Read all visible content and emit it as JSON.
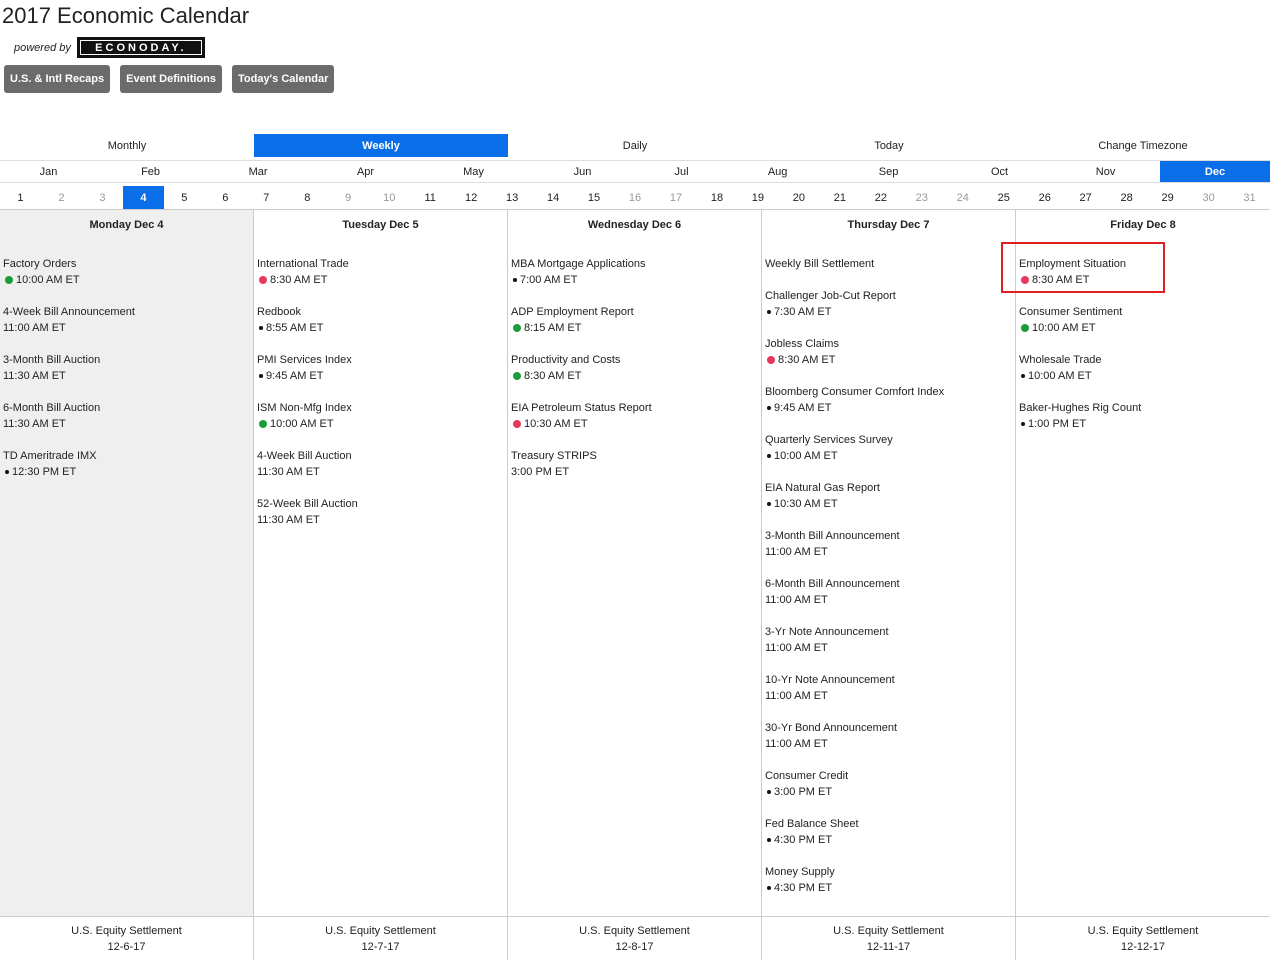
{
  "header": {
    "title": "2017 Economic Calendar",
    "powered_by": "powered by",
    "logo_text": "ECONODAY."
  },
  "top_buttons": [
    "U.S. & Intl Recaps",
    "Event Definitions",
    "Today's Calendar"
  ],
  "view_tabs": [
    {
      "label": "Monthly",
      "active": false
    },
    {
      "label": "Weekly",
      "active": true
    },
    {
      "label": "Daily",
      "active": false
    },
    {
      "label": "Today",
      "active": false
    },
    {
      "label": "Change Timezone",
      "active": false
    }
  ],
  "months": [
    "Jan",
    "Feb",
    "Mar",
    "Apr",
    "May",
    "Jun",
    "Jul",
    "Aug",
    "Sep",
    "Oct",
    "Nov",
    "Dec"
  ],
  "active_month": "Dec",
  "days": [
    {
      "n": "1",
      "m": false
    },
    {
      "n": "2",
      "m": true
    },
    {
      "n": "3",
      "m": true
    },
    {
      "n": "4",
      "m": false,
      "a": true
    },
    {
      "n": "5",
      "m": false
    },
    {
      "n": "6",
      "m": false
    },
    {
      "n": "7",
      "m": false
    },
    {
      "n": "8",
      "m": false
    },
    {
      "n": "9",
      "m": true
    },
    {
      "n": "10",
      "m": true
    },
    {
      "n": "11",
      "m": false
    },
    {
      "n": "12",
      "m": false
    },
    {
      "n": "13",
      "m": false
    },
    {
      "n": "14",
      "m": false
    },
    {
      "n": "15",
      "m": false
    },
    {
      "n": "16",
      "m": true
    },
    {
      "n": "17",
      "m": true
    },
    {
      "n": "18",
      "m": false
    },
    {
      "n": "19",
      "m": false
    },
    {
      "n": "20",
      "m": false
    },
    {
      "n": "21",
      "m": false
    },
    {
      "n": "22",
      "m": false
    },
    {
      "n": "23",
      "m": true
    },
    {
      "n": "24",
      "m": true
    },
    {
      "n": "25",
      "m": false
    },
    {
      "n": "26",
      "m": false
    },
    {
      "n": "27",
      "m": false
    },
    {
      "n": "28",
      "m": false
    },
    {
      "n": "29",
      "m": false
    },
    {
      "n": "30",
      "m": true
    },
    {
      "n": "31",
      "m": true
    }
  ],
  "columns": [
    {
      "heading": "Monday Dec 4",
      "today": true,
      "events": [
        {
          "name": "Factory Orders",
          "time": "10:00 AM ET",
          "dot": "green"
        },
        {
          "name": "4-Week Bill Announcement",
          "time": "11:00 AM ET",
          "dot": ""
        },
        {
          "name": "3-Month Bill Auction",
          "time": "11:30 AM ET",
          "dot": ""
        },
        {
          "name": "6-Month Bill Auction",
          "time": "11:30 AM ET",
          "dot": ""
        },
        {
          "name": "TD Ameritrade IMX",
          "time": "12:30 PM ET",
          "dot": "black"
        }
      ],
      "footer": [
        "U.S. Equity Settlement",
        "12-6-17"
      ]
    },
    {
      "heading": "Tuesday Dec 5",
      "today": false,
      "events": [
        {
          "name": "International Trade",
          "time": "8:30 AM ET",
          "dot": "red"
        },
        {
          "name": "Redbook",
          "time": "8:55 AM ET",
          "dot": "black"
        },
        {
          "name": "PMI Services Index",
          "time": "9:45 AM ET",
          "dot": "black"
        },
        {
          "name": "ISM Non-Mfg Index",
          "time": "10:00 AM ET",
          "dot": "green"
        },
        {
          "name": "4-Week Bill Auction",
          "time": "11:30 AM ET",
          "dot": ""
        },
        {
          "name": "52-Week Bill Auction",
          "time": "11:30 AM ET",
          "dot": ""
        }
      ],
      "footer": [
        "U.S. Equity Settlement",
        "12-7-17"
      ]
    },
    {
      "heading": "Wednesday Dec 6",
      "today": false,
      "events": [
        {
          "name": "MBA Mortgage Applications",
          "time": "7:00 AM ET",
          "dot": "black"
        },
        {
          "name": "ADP Employment Report",
          "time": "8:15 AM ET",
          "dot": "green"
        },
        {
          "name": "Productivity and Costs",
          "time": "8:30 AM ET",
          "dot": "green"
        },
        {
          "name": "EIA Petroleum Status Report",
          "time": "10:30 AM ET",
          "dot": "red"
        },
        {
          "name": "Treasury STRIPS",
          "time": "3:00 PM ET",
          "dot": ""
        }
      ],
      "footer": [
        "U.S. Equity Settlement",
        "12-8-17"
      ]
    },
    {
      "heading": "Thursday Dec 7",
      "today": false,
      "events": [
        {
          "name": "Weekly Bill Settlement",
          "time": "",
          "dot": ""
        },
        {
          "name": "Challenger Job-Cut Report",
          "time": "7:30 AM ET",
          "dot": "black"
        },
        {
          "name": "Jobless Claims",
          "time": "8:30 AM ET",
          "dot": "red"
        },
        {
          "name": "Bloomberg Consumer Comfort Index",
          "time": "9:45 AM ET",
          "dot": "black"
        },
        {
          "name": "Quarterly Services Survey",
          "time": "10:00 AM ET",
          "dot": "black"
        },
        {
          "name": "EIA Natural Gas Report",
          "time": "10:30 AM ET",
          "dot": "black"
        },
        {
          "name": "3-Month Bill Announcement",
          "time": "11:00 AM ET",
          "dot": ""
        },
        {
          "name": "6-Month Bill Announcement",
          "time": "11:00 AM ET",
          "dot": ""
        },
        {
          "name": "3-Yr Note Announcement",
          "time": "11:00 AM ET",
          "dot": ""
        },
        {
          "name": "10-Yr Note Announcement",
          "time": "11:00 AM ET",
          "dot": ""
        },
        {
          "name": "30-Yr Bond Announcement",
          "time": "11:00 AM ET",
          "dot": ""
        },
        {
          "name": "Consumer Credit",
          "time": "3:00 PM ET",
          "dot": "black"
        },
        {
          "name": "Fed Balance Sheet",
          "time": "4:30 PM ET",
          "dot": "black"
        },
        {
          "name": "Money Supply",
          "time": "4:30 PM ET",
          "dot": "black"
        }
      ],
      "footer": [
        "U.S. Equity Settlement",
        "12-11-17"
      ]
    },
    {
      "heading": "Friday Dec 8",
      "today": false,
      "events": [
        {
          "name": "Employment Situation",
          "time": "8:30 AM ET",
          "dot": "red"
        },
        {
          "name": "Consumer Sentiment",
          "time": "10:00 AM ET",
          "dot": "green"
        },
        {
          "name": "Wholesale Trade",
          "time": "10:00 AM ET",
          "dot": "black"
        },
        {
          "name": "Baker-Hughes Rig Count",
          "time": "1:00 PM ET",
          "dot": "black"
        }
      ],
      "footer": [
        "U.S. Equity Settlement",
        "12-12-17"
      ]
    }
  ],
  "colors": {
    "accent": "#0a6ee8",
    "green": "#1a9c3c",
    "red": "#e8385a",
    "button": "#6b6b6b",
    "highlight": "#e02020"
  }
}
